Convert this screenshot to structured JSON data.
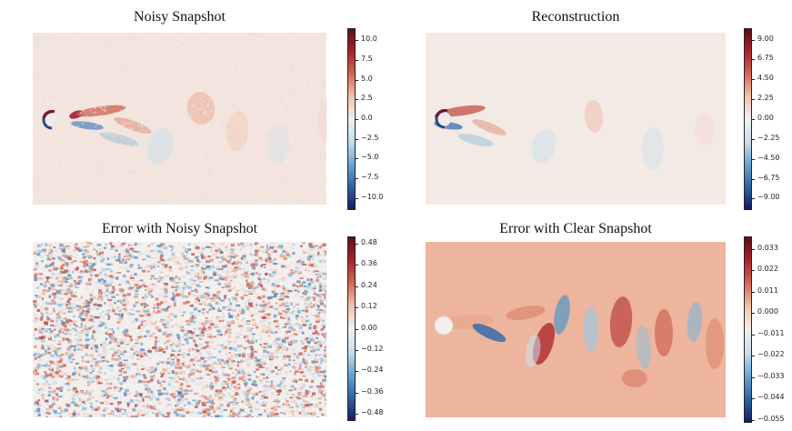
{
  "colormap": {
    "stops": [
      "#1a1c5a",
      "#2e63a8",
      "#6aa7cf",
      "#c6dfec",
      "#f3efed",
      "#f2c3ab",
      "#d36a51",
      "#a8222e",
      "#5a0f19"
    ]
  },
  "chart_data": [
    {
      "type": "heatmap",
      "title": "Noisy Snapshot",
      "field": "vorticity_noisy",
      "colorbar": {
        "vmin": -11.5,
        "vmax": 11.5,
        "ticks": [
          10.0,
          7.5,
          5.0,
          2.5,
          0.0,
          -2.5,
          -5.0,
          -7.5,
          -10.0
        ],
        "tick_labels": [
          "10.0",
          "7.5",
          "5.0",
          "2.5",
          "0.0",
          "−2.5",
          "−5.0",
          "−7.5",
          "−10.0"
        ]
      }
    },
    {
      "type": "heatmap",
      "title": "Reconstruction",
      "field": "vorticity_reconstruction",
      "colorbar": {
        "vmin": -10.3,
        "vmax": 10.3,
        "ticks": [
          9.0,
          6.75,
          4.5,
          2.25,
          0.0,
          -2.25,
          -4.5,
          -6.75,
          -9.0
        ],
        "tick_labels": [
          "9.00",
          "6.75",
          "4.50",
          "2.25",
          "0.00",
          "−2.25",
          "−4.50",
          "−6.75",
          "−9.00"
        ]
      }
    },
    {
      "type": "heatmap",
      "title": "Error with Noisy Snapshot",
      "field": "error_noisy",
      "colorbar": {
        "vmin": -0.52,
        "vmax": 0.52,
        "ticks": [
          0.48,
          0.36,
          0.24,
          0.12,
          0.0,
          -0.12,
          -0.24,
          -0.36,
          -0.48
        ],
        "tick_labels": [
          "0.48",
          "0.36",
          "0.24",
          "0.12",
          "0.00",
          "−0.12",
          "−0.24",
          "−0.36",
          "−0.48"
        ]
      }
    },
    {
      "type": "heatmap",
      "title": "Error with Clear Snapshot",
      "field": "error_clear",
      "colorbar": {
        "vmin": -0.0565,
        "vmax": 0.0395,
        "ticks": [
          0.033,
          0.022,
          0.011,
          0.0,
          -0.011,
          -0.022,
          -0.033,
          -0.044,
          -0.055
        ],
        "tick_labels": [
          "0.033",
          "0.022",
          "0.011",
          "0.000",
          "−0.011",
          "−0.022",
          "−0.033",
          "−0.044",
          "−0.055"
        ]
      }
    }
  ]
}
